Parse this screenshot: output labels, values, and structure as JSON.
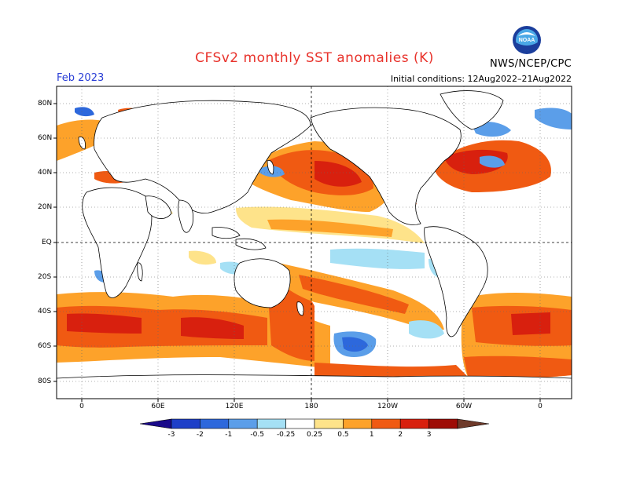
{
  "header": {
    "title": "CFSv2 monthly SST anomalies (K)",
    "month": "Feb 2023",
    "initial_conditions": "Initial conditions: 12Aug2022–21Aug2022",
    "agency": "NWS/NCEP/CPC",
    "logo_text": "NOAA"
  },
  "axes": {
    "lat_labels": [
      "80N",
      "60N",
      "40N",
      "20N",
      "EQ",
      "20S",
      "40S",
      "60S",
      "80S"
    ],
    "lon_labels": [
      "0",
      "60E",
      "120E",
      "180",
      "120W",
      "60W",
      "0"
    ]
  },
  "colorbar": {
    "ticks": [
      "-3",
      "-2",
      "-1",
      "-0.5",
      "-0.25",
      "0.25",
      "0.5",
      "1",
      "2",
      "3"
    ],
    "colors": [
      "#1a0a8a",
      "#1e3fc8",
      "#2d68dc",
      "#5b9ee9",
      "#a5e0f5",
      "#ffffff",
      "#fee38a",
      "#fda22a",
      "#f05a12",
      "#d8200e",
      "#9e0c06",
      "#6e3a2a"
    ]
  },
  "map_features": {
    "land_color": "#ffffff",
    "coast_color": "#000000",
    "grid": true,
    "anomaly_regions": [
      {
        "region": "Southern Ocean 40S-60S",
        "anomaly": "warm",
        "level": 1.5
      },
      {
        "region": "North Pacific 30N-50N",
        "anomaly": "warm",
        "level": 1.5
      },
      {
        "region": "Northwest Atlantic",
        "anomaly": "warm",
        "level": 2
      },
      {
        "region": "South Pacific 20S-40S",
        "anomaly": "warm",
        "level": 1
      },
      {
        "region": "Equatorial Pacific",
        "anomaly": "cool",
        "level": -0.3
      },
      {
        "region": "Southeast Pacific 50S-60S",
        "anomaly": "cool",
        "level": -1
      },
      {
        "region": "Labrador Sea",
        "anomaly": "cool",
        "level": -1
      }
    ]
  }
}
